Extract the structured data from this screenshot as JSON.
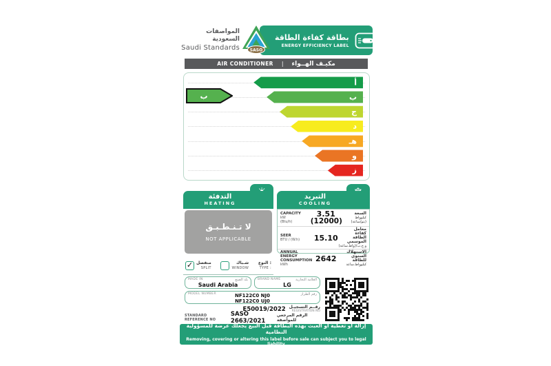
{
  "colors": {
    "brand_green": "#239e77",
    "bar_gray": "#58595b",
    "na_gray": "#a2a2a1",
    "indicator_green": "#55b14e"
  },
  "icons": {
    "sun": "☀",
    "snowflake": "❄"
  },
  "header": {
    "org_name_ar": "المواصفات السعودية",
    "org_name_en": "Saudi Standards",
    "logo_text": "SASO",
    "label_title_ar": "بطاقة كفاءة الطاقة",
    "label_title_en": "ENERGY EFFICIENCY LABEL"
  },
  "product_bar": {
    "name_en": "AIR CONDITIONER",
    "divider": "|",
    "name_ar": "مكيـف الهــواء"
  },
  "rating": {
    "grades": [
      {
        "letter": "أ",
        "color": "#149c49",
        "width_pct": 59
      },
      {
        "letter": "ب",
        "color": "#55b14e",
        "width_pct": 52
      },
      {
        "letter": "ج",
        "color": "#bed630",
        "width_pct": 45
      },
      {
        "letter": "د",
        "color": "#f7ec1f",
        "width_pct": 39
      },
      {
        "letter": "هـ",
        "color": "#f7a823",
        "width_pct": 33
      },
      {
        "letter": "و",
        "color": "#ea7524",
        "width_pct": 26
      },
      {
        "letter": "ز",
        "color": "#e52620",
        "width_pct": 19
      }
    ],
    "selected_grade": "ب",
    "selected_index": 1
  },
  "heating": {
    "title_ar": "التدفئة",
    "title_en": "HEATING",
    "status_ar": "لا تـنـطـبـق",
    "status_en": "NOT APPLICABLE"
  },
  "cooling": {
    "title_ar": "التبريد",
    "title_en": "COOLING",
    "rows": [
      {
        "label_en": "CAPACITY",
        "unit_en": "kW",
        "unit_en2": "(Btu/h)",
        "value": "3.51",
        "value2": "(12000)",
        "label_ar": "السعة",
        "unit_ar": "كيلوواط",
        "unit_ar2": "(بتو/ساعة)"
      },
      {
        "label_en": "SEER",
        "unit_en": "BTU / (W.h)",
        "unit_en2": "",
        "value": "15.10",
        "value2": "",
        "label_ar": "معامل كفاءة الطاقة الموسمي",
        "unit_ar": "و.ح.ب/(واط.ساعة)",
        "unit_ar2": ""
      },
      {
        "label_en": "ANNUAL ENERGY CONSUMPTION",
        "unit_en": "kWh",
        "unit_en2": "",
        "value": "2642",
        "value2": "",
        "label_ar": "الاستهلاك السنوي للطاقة",
        "unit_ar": "كيلوواط.ساعة",
        "unit_ar2": ""
      }
    ]
  },
  "type_row": {
    "label_ar": "النوع :",
    "label_en": "TYPE :",
    "checkmark": "✓",
    "options": [
      {
        "name_ar": "منفصل",
        "name_en": "SPLIT",
        "checked": true
      },
      {
        "name_ar": "شـباك",
        "name_en": "WINDOW",
        "checked": false
      }
    ]
  },
  "form": {
    "made_in": {
      "label_en": "MADE IN",
      "label_ar": "بلد الصنع",
      "value": "Saudi Arabia"
    },
    "brand": {
      "label_en": "BRAND NAME",
      "label_ar": "العلامة التجارية",
      "value": "LG"
    },
    "model": {
      "label_en": "MODEL NUMBER",
      "label_ar": "رقم الطراز",
      "value_line1": "NF122C0 NJ0",
      "value_line2": "NF122C0 UJ0"
    },
    "registration": {
      "value": "E50019/2022",
      "label_ar": "رقــم التسجيـل",
      "label_en": "REGISTRATION NO"
    },
    "standard": {
      "label_en": "STANDARD REFERENCE NO",
      "value": "SASO 2663/2021",
      "label_ar": "الرقم المرجعي للمواصفة"
    }
  },
  "footer": {
    "line_ar": "إزالة أو تغطية أو العبث بهذه البطاقة قبل البيع يجعلك عرضة للمسؤولية النظامية",
    "line_en": "Removing, covering or altering this label before sale can subject you to legal liability"
  }
}
